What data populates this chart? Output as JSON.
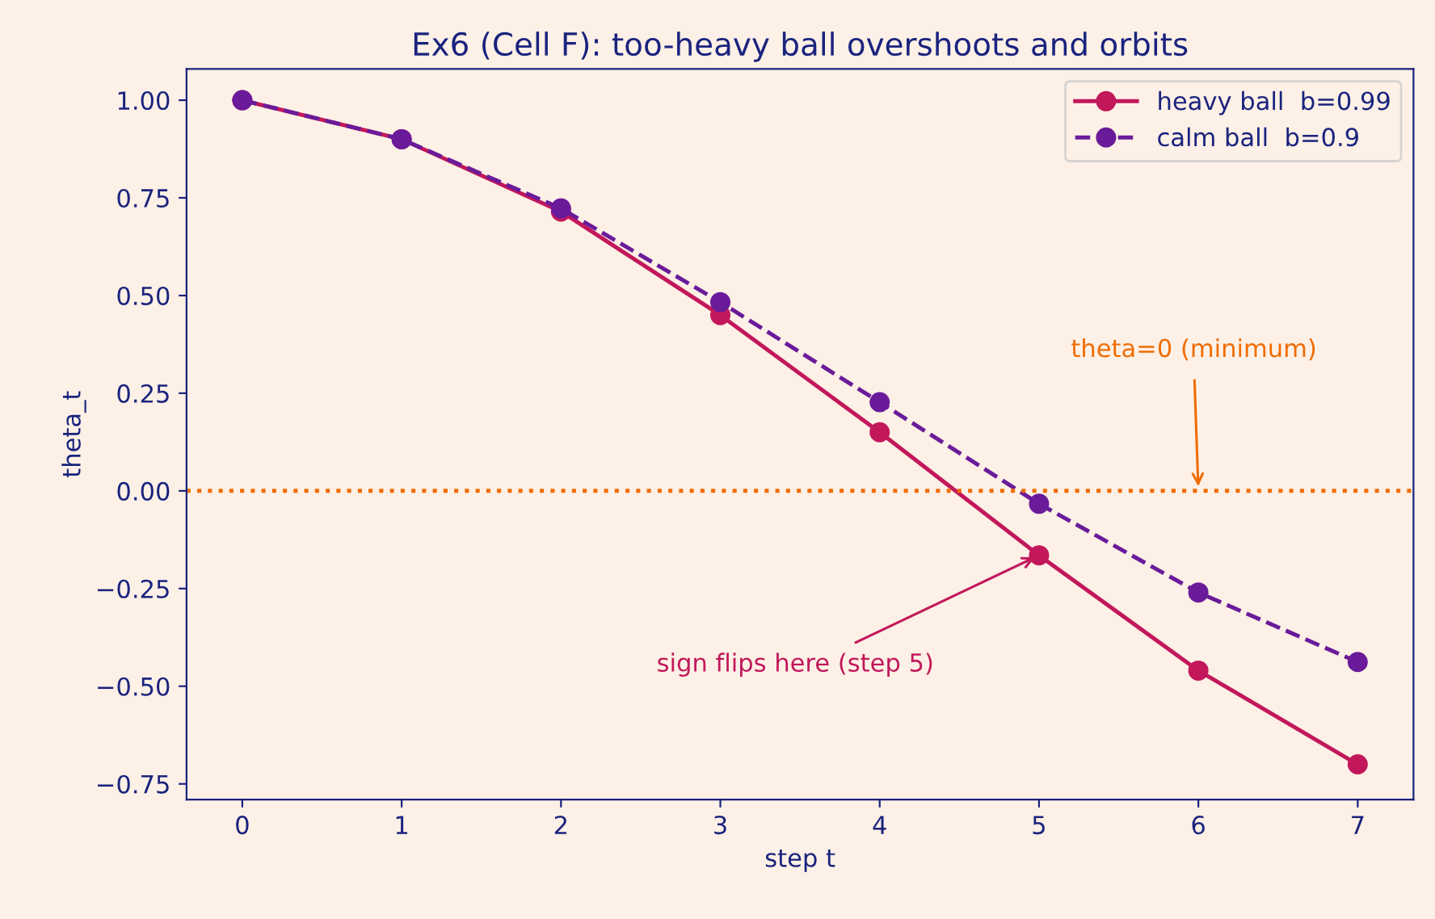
{
  "chart_data": {
    "type": "line",
    "title": "Ex6 (Cell F): too-heavy ball overshoots and orbits",
    "xlabel": "step t",
    "ylabel": "theta_t",
    "x": [
      0,
      1,
      2,
      3,
      4,
      5,
      6,
      7
    ],
    "series": [
      {
        "name": "heavy ball  b=0.99",
        "color": "#c2185b",
        "values": [
          1.0,
          0.9,
          0.715,
          0.45,
          0.15,
          -0.165,
          -0.46,
          -0.7
        ],
        "line_style": "solid"
      },
      {
        "name": "calm ball  b=0.9",
        "color": "#6a1b9a",
        "values": [
          1.0,
          0.9,
          0.723,
          0.483,
          0.227,
          -0.033,
          -0.26,
          -0.438
        ],
        "line_style": "dashed"
      }
    ],
    "marker": "circle",
    "legend": "top right",
    "grid": false,
    "xlim": [
      -0.35,
      7.35
    ],
    "ylim": [
      -0.79,
      1.08
    ],
    "xticks": [
      0,
      1,
      2,
      3,
      4,
      5,
      6,
      7
    ],
    "yticks": [
      {
        "value": -0.75,
        "label": "−0.75"
      },
      {
        "value": -0.5,
        "label": "−0.50"
      },
      {
        "value": -0.25,
        "label": "−0.25"
      },
      {
        "value": 0,
        "label": "0.00"
      },
      {
        "value": 0.25,
        "label": "0.25"
      },
      {
        "value": 0.5,
        "label": "0.50"
      },
      {
        "value": 0.75,
        "label": "0.75"
      },
      {
        "value": 1.0,
        "label": "1.00"
      }
    ],
    "ref_lines": [
      {
        "axis": "y",
        "value": 0,
        "color": "#ef6c00",
        "line_style": "dotted"
      }
    ],
    "annotations": [
      {
        "text": "theta=0 (minimum)",
        "x": 6,
        "y": 0
      },
      {
        "text": "sign flips here (step 5)",
        "x": 5,
        "y": -0.165
      }
    ]
  }
}
